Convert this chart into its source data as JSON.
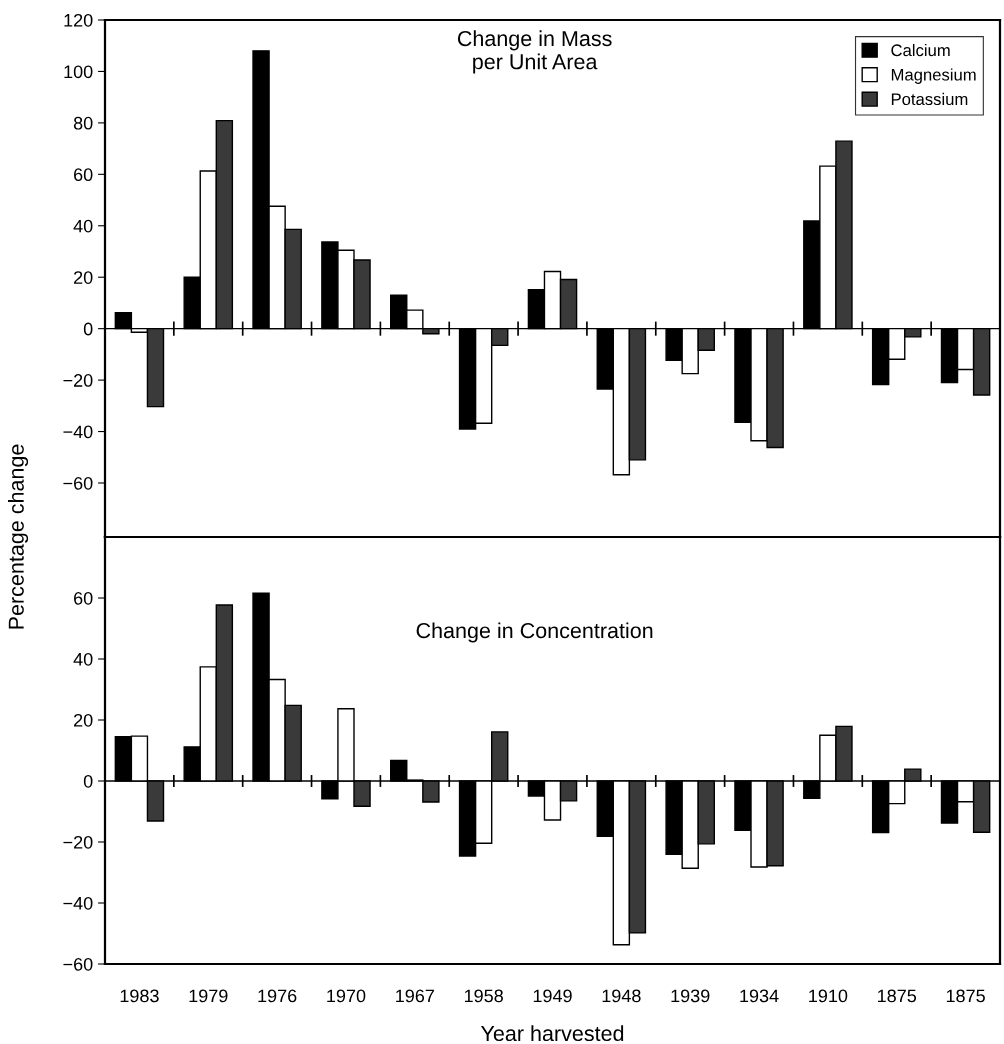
{
  "chart_data": [
    {
      "type": "bar",
      "title": "Change in Mass\nper Unit Area",
      "ylabel": "Percentage change",
      "categories": [
        "1983",
        "1979",
        "1976",
        "1970",
        "1967",
        "1958",
        "1949",
        "1948",
        "1939",
        "1934",
        "1910",
        "1875",
        "1875"
      ],
      "series": [
        {
          "name": "Calcium",
          "color": "#000000",
          "values": [
            6.2,
            20,
            108,
            33.7,
            13,
            -39,
            15.1,
            -23.5,
            -12.3,
            -36.4,
            41.9,
            -21.7,
            -21
          ]
        },
        {
          "name": "Magnesium",
          "color": "#ffffff",
          "values": [
            -1.4,
            61.3,
            47.6,
            30.5,
            7.2,
            -36.8,
            22.2,
            -56.8,
            -17.5,
            -43.6,
            63.2,
            -11.9,
            -15.9
          ]
        },
        {
          "name": "Potassium",
          "color": "#3a3a3a",
          "values": [
            -30.3,
            80.9,
            38.6,
            26.7,
            -2,
            -6.5,
            19.1,
            -51,
            -8.4,
            -46.2,
            72.9,
            -3.2,
            -25.8
          ]
        }
      ],
      "ylim": [
        -81,
        120
      ],
      "yticks": [
        -60,
        -40,
        -20,
        0,
        20,
        40,
        60,
        80,
        100,
        120
      ],
      "ref_lines": [
        {
          "axis": "y",
          "value": 0
        }
      ],
      "legend": "top right",
      "tick_labels": "y",
      "grid": false
    },
    {
      "type": "bar",
      "title": "Change in Concentration",
      "xlabel": "Year harvested",
      "categories": [
        "1983",
        "1979",
        "1976",
        "1970",
        "1967",
        "1958",
        "1949",
        "1948",
        "1939",
        "1934",
        "1910",
        "1875",
        "1875"
      ],
      "series": [
        {
          "color": "#000000",
          "values": [
            14.5,
            11.2,
            61.6,
            -5.8,
            6.7,
            -24.6,
            -4.9,
            -18.1,
            -24,
            -16.2,
            -5.7,
            -16.9,
            -13.8
          ]
        },
        {
          "color": "#ffffff",
          "values": [
            14.7,
            37.4,
            33.3,
            23.7,
            0.3,
            -20.4,
            -12.8,
            -53.7,
            -28.6,
            -28.2,
            15,
            -7.4,
            -6.8
          ]
        },
        {
          "color": "#3a3a3a",
          "values": [
            -13.1,
            57.7,
            24.8,
            -8.3,
            -6.9,
            16.1,
            -6.5,
            -49.8,
            -20.6,
            -27.8,
            17.9,
            3.9,
            -16.8
          ]
        }
      ],
      "ylim": [
        -60,
        80
      ],
      "yticks": [
        -60,
        -40,
        -20,
        0,
        20,
        40,
        60
      ],
      "ref_lines": [
        {
          "axis": "y",
          "value": 0
        }
      ],
      "grid": false
    }
  ]
}
